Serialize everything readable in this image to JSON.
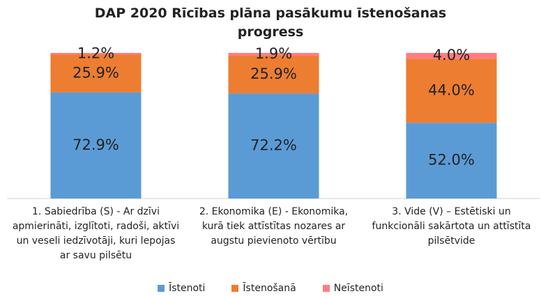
{
  "chart_data": {
    "type": "bar",
    "stacked": true,
    "title": "DAP 2020 Rīcības plāna pasākumu īstenošanas progress",
    "categories": [
      "1. Sabiedrība (S) - Ar dzīvi apmierināti, izglītoti, radoši, aktīvi un veseli iedzīvotāji, kuri lepojas ar savu pilsētu",
      "2. Ekonomika (E) - Ekonomika, kurā tiek attīstītas nozares ar augstu pievienoto vērtību",
      "3. Vide (V) – Estētiski un funkcionāli sakārtota un attīstīta pilsētvide"
    ],
    "series": [
      {
        "name": "Īstenoti",
        "color": "#5b9bd5",
        "values": [
          72.9,
          72.2,
          52.0
        ],
        "value_labels": [
          "72.9%",
          "72.2%",
          "52.0%"
        ]
      },
      {
        "name": "Īstenošanā",
        "color": "#ed7d31",
        "values": [
          25.9,
          25.9,
          44.0
        ],
        "value_labels": [
          "25.9%",
          "25.9%",
          "44.0%"
        ]
      },
      {
        "name": "Neīstenoti",
        "color": "#ff7c80",
        "values": [
          1.2,
          1.9,
          4.0
        ],
        "value_labels": [
          "1.2%",
          "1.9%",
          "4.0%"
        ]
      }
    ],
    "ylim": [
      0,
      100
    ],
    "legend": "bottom"
  }
}
